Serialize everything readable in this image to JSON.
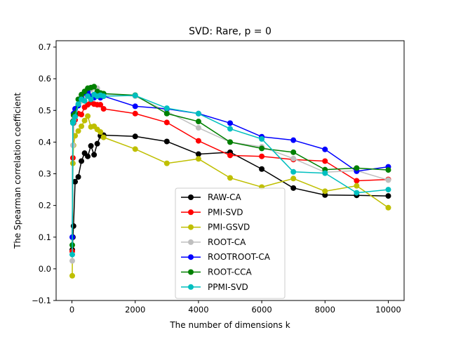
{
  "chart_data": {
    "type": "line",
    "title": "SVD: Rare, p = 0",
    "xlabel": "The number of dimensions k",
    "ylabel": "The Spearman correlation coefficient",
    "xlim": [
      -500,
      10500
    ],
    "ylim": [
      -0.1,
      0.72
    ],
    "xticks": [
      0,
      2000,
      4000,
      6000,
      8000,
      10000
    ],
    "yticks": [
      -0.1,
      0.0,
      0.1,
      0.2,
      0.3,
      0.4,
      0.5,
      0.6,
      0.7
    ],
    "xtick_labels": [
      "0",
      "2000",
      "4000",
      "6000",
      "8000",
      "10000"
    ],
    "ytick_labels": [
      "−0.1",
      "0.0",
      "0.1",
      "0.2",
      "0.3",
      "0.4",
      "0.5",
      "0.6",
      "0.7"
    ],
    "grid": false,
    "legend_position": "lower-center",
    "series": [
      {
        "name": "RAW-CA",
        "color": "#000000",
        "x": [
          10,
          30,
          50,
          100,
          200,
          300,
          400,
          500,
          600,
          700,
          800,
          900,
          1000,
          2000,
          3000,
          4000,
          5000,
          6000,
          7000,
          8000,
          9000,
          10000
        ],
        "y": [
          0.06,
          0.1,
          0.135,
          0.275,
          0.29,
          0.34,
          0.365,
          0.355,
          0.388,
          0.36,
          0.395,
          0.42,
          0.422,
          0.418,
          0.402,
          0.362,
          0.368,
          0.315,
          0.255,
          0.233,
          0.232,
          0.23
        ]
      },
      {
        "name": "PMI-SVD",
        "color": "#ff0000",
        "x": [
          10,
          30,
          50,
          100,
          200,
          300,
          400,
          500,
          600,
          700,
          800,
          900,
          1000,
          2000,
          3000,
          4000,
          5000,
          6000,
          7000,
          8000,
          9000,
          10000
        ],
        "y": [
          0.055,
          0.35,
          0.46,
          0.47,
          0.49,
          0.487,
          0.51,
          0.518,
          0.525,
          0.52,
          0.518,
          0.518,
          0.505,
          0.49,
          0.462,
          0.404,
          0.358,
          0.355,
          0.345,
          0.34,
          0.278,
          0.282
        ]
      },
      {
        "name": "PMI-GSVD",
        "color": "#bfbf00",
        "x": [
          10,
          30,
          50,
          100,
          200,
          300,
          400,
          500,
          600,
          700,
          800,
          900,
          1000,
          2000,
          3000,
          4000,
          5000,
          6000,
          7000,
          8000,
          9000,
          10000
        ],
        "y": [
          -0.022,
          0.333,
          0.39,
          0.42,
          0.435,
          0.45,
          0.468,
          0.482,
          0.448,
          0.45,
          0.44,
          0.432,
          0.415,
          0.378,
          0.333,
          0.347,
          0.287,
          0.258,
          0.285,
          0.245,
          0.262,
          0.193
        ]
      },
      {
        "name": "ROOT-CA",
        "color": "#bfbfbf",
        "x": [
          10,
          30,
          50,
          100,
          200,
          300,
          400,
          500,
          600,
          700,
          800,
          900,
          1000,
          2000,
          3000,
          4000,
          5000,
          6000,
          7000,
          8000,
          9000,
          10000
        ],
        "y": [
          0.025,
          0.39,
          0.47,
          0.5,
          0.52,
          0.53,
          0.545,
          0.555,
          0.565,
          0.573,
          0.57,
          0.555,
          0.552,
          0.545,
          0.497,
          0.445,
          0.4,
          0.385,
          0.348,
          0.305,
          0.31,
          0.28
        ]
      },
      {
        "name": "ROOTROOT-CA",
        "color": "#0000ff",
        "x": [
          10,
          30,
          50,
          100,
          200,
          300,
          400,
          500,
          600,
          700,
          800,
          900,
          1000,
          2000,
          3000,
          4000,
          5000,
          6000,
          7000,
          8000,
          9000,
          10000
        ],
        "y": [
          0.1,
          0.465,
          0.49,
          0.505,
          0.515,
          0.54,
          0.555,
          0.558,
          0.545,
          0.54,
          0.545,
          0.54,
          0.545,
          0.513,
          0.505,
          0.49,
          0.46,
          0.417,
          0.406,
          0.377,
          0.308,
          0.322
        ]
      },
      {
        "name": "ROOT-CCA",
        "color": "#008000",
        "x": [
          10,
          30,
          50,
          100,
          200,
          300,
          400,
          500,
          600,
          700,
          800,
          900,
          1000,
          2000,
          3000,
          4000,
          5000,
          6000,
          7000,
          8000,
          9000,
          10000
        ],
        "y": [
          0.075,
          0.465,
          0.485,
          0.49,
          0.535,
          0.55,
          0.56,
          0.57,
          0.572,
          0.575,
          0.56,
          0.555,
          0.553,
          0.548,
          0.49,
          0.465,
          0.4,
          0.38,
          0.368,
          0.313,
          0.318,
          0.312
        ]
      },
      {
        "name": "PPMI-SVD",
        "color": "#00bfbf",
        "x": [
          10,
          30,
          50,
          100,
          200,
          300,
          400,
          500,
          600,
          700,
          800,
          900,
          1000,
          2000,
          3000,
          4000,
          5000,
          6000,
          7000,
          8000,
          9000,
          10000
        ],
        "y": [
          0.045,
          0.46,
          0.465,
          0.48,
          0.52,
          0.535,
          0.53,
          0.545,
          0.535,
          0.55,
          0.545,
          0.548,
          0.545,
          0.547,
          0.507,
          0.49,
          0.442,
          0.41,
          0.306,
          0.302,
          0.24,
          0.25
        ]
      }
    ]
  }
}
